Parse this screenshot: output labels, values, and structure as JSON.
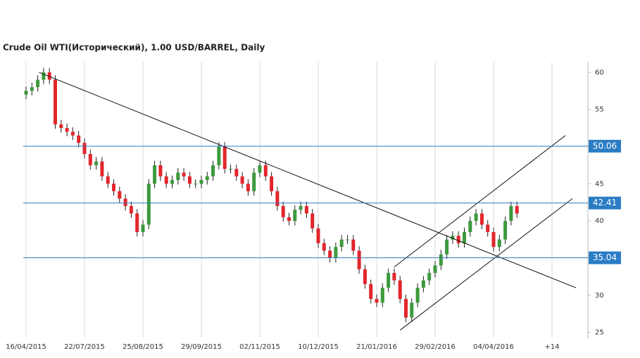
{
  "chart_data": {
    "type": "candlestick",
    "title": "Crude Oil WTI(Исторический), 1.00 USD/BARREL, Daily",
    "categories": [
      "16/04/2015",
      null,
      null,
      null,
      null,
      null,
      null,
      null,
      null,
      null,
      "22/07/2015",
      null,
      null,
      null,
      null,
      null,
      null,
      null,
      null,
      null,
      "25/08/2015",
      null,
      null,
      null,
      null,
      null,
      null,
      null,
      null,
      null,
      "29/09/2015",
      null,
      null,
      null,
      null,
      null,
      null,
      null,
      null,
      null,
      "02/11/2015",
      null,
      null,
      null,
      null,
      null,
      null,
      null,
      null,
      null,
      "10/12/2015",
      null,
      null,
      null,
      null,
      null,
      null,
      null,
      null,
      null,
      "21/01/2016",
      null,
      null,
      null,
      null,
      null,
      null,
      null,
      null,
      null,
      "29/02/2016",
      null,
      null,
      null,
      null,
      null,
      null,
      null,
      null,
      null,
      "04/04/2016",
      null,
      null,
      null,
      null,
      null,
      null,
      null,
      null,
      null,
      "+14",
      null,
      null,
      null,
      null,
      null
    ],
    "open": [
      57,
      57.5,
      58,
      59,
      60,
      59,
      53,
      52.5,
      52,
      51.5,
      50.5,
      49,
      47.5,
      48,
      46,
      45,
      44,
      43,
      42,
      41,
      38.5,
      39.5,
      45,
      47.5,
      46,
      45,
      45.5,
      46.5,
      46,
      45,
      45,
      45.5,
      46,
      47.5,
      50,
      47,
      47,
      46,
      45,
      44,
      46.5,
      47.5,
      46,
      44,
      42,
      40.5,
      40,
      41.5,
      42,
      41,
      39,
      37,
      36,
      35,
      36.5,
      37.5,
      37.5,
      36,
      33.5,
      31.5,
      29.5,
      29,
      31,
      33,
      32,
      29.5,
      27,
      29,
      31,
      32,
      33,
      34,
      35.5,
      37.5,
      38,
      37,
      38.5,
      40,
      41,
      39.5,
      38.5,
      36.5,
      37.5,
      40,
      42,
      null,
      null,
      null,
      null,
      null,
      null,
      null,
      null,
      null,
      null,
      null
    ],
    "high": [
      58.1,
      58.6,
      59.6,
      60.6,
      60.6,
      59.6,
      53.6,
      53.1,
      52.6,
      52.1,
      51.1,
      49.6,
      48.6,
      48.6,
      46.6,
      45.6,
      44.6,
      43.6,
      42.6,
      41.6,
      40.1,
      45.6,
      48.1,
      48.1,
      46.6,
      46.1,
      47.1,
      47.1,
      46.6,
      45.6,
      46.1,
      46.6,
      48.1,
      50.6,
      50.6,
      47.6,
      47.6,
      46.6,
      45.6,
      47.1,
      48.1,
      48.1,
      46.6,
      44.6,
      42.6,
      41.1,
      42.1,
      42.6,
      42.6,
      41.6,
      39.6,
      37.6,
      36.6,
      37.1,
      38.1,
      38.1,
      38.1,
      36.6,
      34.1,
      32.1,
      30.1,
      31.6,
      33.6,
      33.6,
      32.6,
      30.1,
      29.6,
      31.6,
      32.6,
      33.6,
      34.6,
      36.1,
      38.1,
      38.6,
      38.6,
      39.1,
      40.6,
      41.6,
      41.6,
      40.1,
      39.1,
      38.1,
      40.6,
      42.6,
      42.6,
      null,
      null,
      null,
      null,
      null,
      null,
      null,
      null,
      null,
      null,
      null
    ],
    "low": [
      56.4,
      56.9,
      57.4,
      58.4,
      58.4,
      52.4,
      51.9,
      51.4,
      50.9,
      49.9,
      48.4,
      46.9,
      46.9,
      45.4,
      44.4,
      43.4,
      42.4,
      41.4,
      40.4,
      37.9,
      37.9,
      38.9,
      44.4,
      45.4,
      44.4,
      44.4,
      44.9,
      45.4,
      44.4,
      44.4,
      44.4,
      44.9,
      45.4,
      46.9,
      46.4,
      46.4,
      45.4,
      44.4,
      43.4,
      43.4,
      45.9,
      45.4,
      43.4,
      41.4,
      39.9,
      39.4,
      39.4,
      40.9,
      40.4,
      38.4,
      36.4,
      35.4,
      34.4,
      34.4,
      35.9,
      36.9,
      35.4,
      32.9,
      30.9,
      28.9,
      28.4,
      28.4,
      30.4,
      31.4,
      28.9,
      26.4,
      26.4,
      28.4,
      30.4,
      31.4,
      32.4,
      33.4,
      34.9,
      36.9,
      36.4,
      36.4,
      37.9,
      39.4,
      38.9,
      37.9,
      35.9,
      35.9,
      36.9,
      39.4,
      40.4,
      null,
      null,
      null,
      null,
      null,
      null,
      null,
      null,
      null,
      null,
      null
    ],
    "close": [
      57.5,
      58,
      59,
      60,
      59,
      53,
      52.5,
      52,
      51.5,
      50.5,
      49,
      47.5,
      48,
      46,
      45,
      44,
      43,
      42,
      41,
      38.5,
      39.5,
      45,
      47.5,
      46,
      45,
      45.5,
      46.5,
      46,
      45,
      45,
      45.5,
      46,
      47.5,
      50,
      47,
      47,
      46,
      45,
      44,
      46.5,
      47.5,
      46,
      44,
      42,
      40.5,
      40,
      41.5,
      42,
      41,
      39,
      37,
      36,
      35,
      36.5,
      37.5,
      37.5,
      36,
      33.5,
      31.5,
      29.5,
      29,
      31,
      33,
      32,
      29.5,
      27,
      29,
      31,
      32,
      33,
      34,
      35.5,
      37.5,
      38,
      37,
      38.5,
      40,
      41,
      39.5,
      38.5,
      36.5,
      37.5,
      40,
      42,
      41,
      null,
      null,
      null,
      null,
      null,
      null,
      null,
      null,
      null,
      null,
      null
    ],
    "up_color": "#3c9a3c",
    "down_color": "#e3262c",
    "ylim": [
      24.3,
      61.4
    ],
    "yticks": [
      25,
      30,
      35,
      40,
      45,
      50,
      55,
      60
    ],
    "grid": true,
    "levels": {
      "values": [
        50.06,
        42.41,
        35.04
      ],
      "color": "#2b7cc4"
    },
    "trendlines": [
      {
        "x": [
          2.2,
          94.1
        ],
        "y": [
          60,
          31
        ]
      },
      {
        "x": [
          63,
          92.3
        ],
        "y": [
          33.8,
          51.5
        ]
      },
      {
        "x": [
          64,
          93.5
        ],
        "y": [
          25.3,
          43
        ]
      }
    ],
    "trendline_color": "#111111"
  }
}
